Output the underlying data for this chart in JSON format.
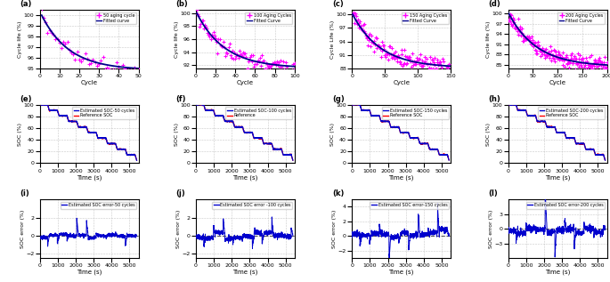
{
  "panels": {
    "row1": [
      {
        "label": "(a)",
        "title": "50 aging cycle",
        "fit_label": "Fitted curve",
        "xlim": [
          0,
          50
        ],
        "ylim": [
          95,
          100.5
        ],
        "yticks": [
          95,
          96,
          97,
          98,
          99,
          100
        ],
        "xticks": [
          0,
          10,
          20,
          30,
          40,
          50
        ],
        "xlabel": "Cycle",
        "ylabel": "Cycle life (%)"
      },
      {
        "label": "(b)",
        "title": "100 Aging Cycles",
        "fit_label": "Fitted Curve",
        "xlim": [
          0,
          100
        ],
        "ylim": [
          91.5,
          100.5
        ],
        "yticks": [
          92,
          94,
          96,
          98,
          100
        ],
        "xticks": [
          0,
          20,
          40,
          60,
          80,
          100
        ],
        "xlabel": "Cycle",
        "ylabel": "Cycle life (%)"
      },
      {
        "label": "(c)",
        "title": "150 Aging Cycles",
        "fit_label": "Fitted Curve",
        "xlim": [
          0,
          150
        ],
        "ylim": [
          88,
          101
        ],
        "yticks": [
          88,
          91,
          94,
          97,
          100
        ],
        "xticks": [
          0,
          50,
          100,
          150
        ],
        "xlabel": "Cycle",
        "ylabel": "Cycle Life (%)"
      },
      {
        "label": "(d)",
        "title": "200 Aging Cycles",
        "fit_label": "Fitted Curve",
        "xlim": [
          0,
          200
        ],
        "ylim": [
          84,
          101
        ],
        "yticks": [
          85,
          88,
          91,
          94,
          97,
          100
        ],
        "xticks": [
          0,
          50,
          100,
          150,
          200
        ],
        "xlabel": "Cycle",
        "ylabel": "Cycle life (%)"
      }
    ],
    "row2": [
      {
        "label": "(e)",
        "est_label": "Estimated SOC-50 cycles",
        "ref_label": "Reference SOC",
        "xlim": [
          0,
          5500
        ],
        "ylim": [
          0,
          100
        ],
        "yticks": [
          0,
          20,
          40,
          60,
          80,
          100
        ],
        "xticks": [
          0,
          1000,
          2000,
          3000,
          4000,
          5000
        ],
        "xlabel": "Time (s)",
        "ylabel": "SOC (%)"
      },
      {
        "label": "(f)",
        "est_label": "Estimated SOC-100 cycles",
        "ref_label": "Reference",
        "xlim": [
          0,
          5500
        ],
        "ylim": [
          0,
          100
        ],
        "yticks": [
          0,
          20,
          40,
          60,
          80,
          100
        ],
        "xticks": [
          0,
          1000,
          2000,
          3000,
          4000,
          5000
        ],
        "xlabel": "Time (s)",
        "ylabel": "SOC (%)"
      },
      {
        "label": "(g)",
        "est_label": "Estimated SOC-150 cycles",
        "ref_label": "Reference SOC",
        "xlim": [
          0,
          5500
        ],
        "ylim": [
          0,
          100
        ],
        "yticks": [
          0,
          20,
          40,
          60,
          80,
          100
        ],
        "xticks": [
          0,
          1000,
          2000,
          3000,
          4000,
          5000
        ],
        "xlabel": "Time (s)",
        "ylabel": "SOC (%)"
      },
      {
        "label": "(h)",
        "est_label": "Estimated SOC-200 cycles",
        "ref_label": "Reference SOC",
        "xlim": [
          0,
          5500
        ],
        "ylim": [
          0,
          100
        ],
        "yticks": [
          0,
          20,
          40,
          60,
          80,
          100
        ],
        "xticks": [
          0,
          1000,
          2000,
          3000,
          4000,
          5000
        ],
        "xlabel": "Time (s)",
        "ylabel": "SOC (%)"
      }
    ],
    "row3": [
      {
        "label": "(i)",
        "err_label": "Estimated SOC error-50 cycles",
        "xlim": [
          0,
          5500
        ],
        "ylim": [
          -2.5,
          4.0
        ],
        "yticks": [
          -2,
          0,
          2
        ],
        "xticks": [
          0,
          1000,
          2000,
          3000,
          4000,
          5000
        ],
        "xlabel": "Time (s)",
        "ylabel": "SOC error (%)"
      },
      {
        "label": "(j)",
        "err_label": "Estimated SOC error -100 cycles",
        "xlim": [
          0,
          5500
        ],
        "ylim": [
          -2.5,
          4.0
        ],
        "yticks": [
          -2,
          0,
          2
        ],
        "xticks": [
          0,
          1000,
          2000,
          3000,
          4000,
          5000
        ],
        "xlabel": "Time (s)",
        "ylabel": "SOC error (%)"
      },
      {
        "label": "(k)",
        "err_label": "Estimated SOC error-150 cycles",
        "xlim": [
          0,
          5500
        ],
        "ylim": [
          -3.0,
          5.0
        ],
        "yticks": [
          -2,
          0,
          2,
          4
        ],
        "xticks": [
          0,
          1000,
          2000,
          3000,
          4000,
          5000
        ],
        "xlabel": "Time (s)",
        "ylabel": "SOC error (%)"
      },
      {
        "label": "(l)",
        "err_label": "Estimated SOC error-200 cycles",
        "xlim": [
          0,
          5500
        ],
        "ylim": [
          -6.0,
          6.0
        ],
        "yticks": [
          -3,
          0,
          3
        ],
        "xticks": [
          0,
          1000,
          2000,
          3000,
          4000,
          5000
        ],
        "xlabel": "Time (s)",
        "ylabel": "SOC error (%)"
      }
    ]
  },
  "cycle_configs": [
    {
      "n": 50,
      "start": 100.0,
      "end": 95.0,
      "noise": 0.35
    },
    {
      "n": 100,
      "start": 100.0,
      "end": 91.8,
      "noise": 0.55
    },
    {
      "n": 150,
      "start": 100.0,
      "end": 88.5,
      "noise": 0.9
    },
    {
      "n": 200,
      "start": 100.0,
      "end": 85.0,
      "noise": 1.1
    }
  ],
  "colors": {
    "scatter": "#FF00FF",
    "fit": "#00008B",
    "soc_est": "#0000CD",
    "soc_ref": "#FF0000",
    "error": "#0000CD",
    "zero_line": "#555555",
    "grid": "#BBBBBB"
  }
}
